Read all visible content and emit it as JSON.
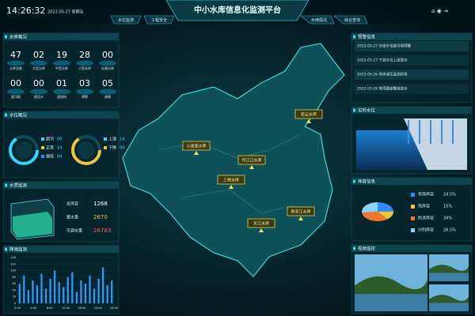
{
  "header": {
    "time": "14:26:32",
    "date": "2022-05-27 星期五",
    "title": "中小水库信息化监测平台",
    "nav_left": [
      "水位监测",
      "工程安全"
    ],
    "nav_right": [
      "水雨情况",
      "综合查询"
    ]
  },
  "overview": {
    "title": "水库概况",
    "items": [
      {
        "value": "47",
        "label": "水库总数"
      },
      {
        "value": "02",
        "label": "大型水库"
      },
      {
        "value": "19",
        "label": "中型水库"
      },
      {
        "value": "28",
        "label": "小型水库"
      },
      {
        "value": "00",
        "label": "在建水库"
      },
      {
        "value": "00",
        "label": "超汛限"
      },
      {
        "value": "00",
        "label": "超设计"
      },
      {
        "value": "01",
        "label": "超校核"
      },
      {
        "value": "03",
        "label": "预警"
      },
      {
        "value": "05",
        "label": "故障"
      }
    ]
  },
  "water_level": {
    "title": "水位概况",
    "rings": [
      [
        {
          "label": "超汛",
          "value": "00"
        },
        {
          "label": "正常",
          "value": "14"
        },
        {
          "label": "偏低",
          "value": "04"
        }
      ],
      [
        {
          "label": "上涨",
          "value": "14"
        },
        {
          "label": "下降",
          "value": "04"
        }
      ]
    ]
  },
  "storage": {
    "title": "水质监测",
    "rows": [
      {
        "label": "总库容",
        "value": "1268"
      },
      {
        "label": "蓄水量",
        "value": "2670"
      },
      {
        "label": "可调水量",
        "value": "26783"
      }
    ]
  },
  "rainfall": {
    "title": "降雨监测",
    "ylim": [
      0,
      140
    ],
    "yticks": [
      0,
      20,
      40,
      60,
      80,
      100,
      120,
      140
    ],
    "xticks": [
      "0:00",
      "4:00",
      "8:00",
      "12:00",
      "16:00",
      "20:00",
      "24:00"
    ],
    "values": [
      60,
      85,
      40,
      70,
      55,
      90,
      45,
      75,
      100,
      65,
      50,
      80,
      95,
      35,
      70,
      60,
      85,
      45,
      75,
      110,
      55,
      70
    ]
  },
  "map": {
    "markers": [
      "密云水库",
      "小浪底水库",
      "丹江口水库",
      "三峡水库",
      "新安江水库",
      "东江水库"
    ]
  },
  "alerts": {
    "title": "预警信息",
    "items": [
      "2022-05-27 水库水位超汛限预警",
      "2022-05-27 下游水位上涨提示",
      "2022-05-26 坝体渗压监测异常",
      "2022-05-26 降雨量超警戒提示"
    ]
  },
  "realtime": {
    "title": "实时水位"
  },
  "capacity": {
    "title": "库容信息",
    "labels": [
      "有效库容",
      "死库容",
      "防洪库容",
      "兴利库容"
    ],
    "values": [
      24.5,
      15,
      34,
      26.5
    ],
    "value_labels": [
      "24.5%",
      "15%",
      "34%",
      "26.5%"
    ]
  },
  "video": {
    "title": "视频监控"
  }
}
